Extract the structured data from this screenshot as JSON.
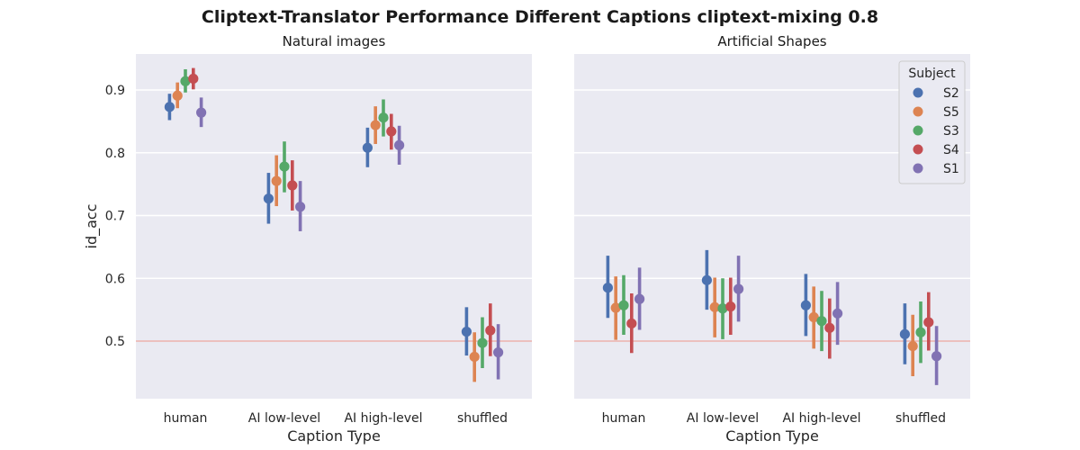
{
  "figure_title": "Cliptext-Translator Performance Different Captions cliptext-mixing 0.8",
  "chart_data": [
    {
      "type": "pointplot",
      "title": "Natural images",
      "xlabel": "Caption Type",
      "ylabel": "id_acc",
      "categories": [
        "human",
        "AI low-level",
        "AI high-level",
        "shuffled"
      ],
      "ylim": [
        0.4,
        0.95
      ],
      "yticks": [
        "0.5",
        "0.6",
        "0.7",
        "0.8",
        "0.9"
      ],
      "reference_line": 0.5,
      "series": [
        {
          "name": "S2",
          "values": [
            0.873,
            0.727,
            0.808,
            0.515
          ],
          "ci_low": [
            0.852,
            0.687,
            0.777,
            0.477
          ],
          "ci_high": [
            0.894,
            0.768,
            0.84,
            0.554
          ]
        },
        {
          "name": "S5",
          "values": [
            0.891,
            0.755,
            0.844,
            0.475
          ],
          "ci_low": [
            0.871,
            0.715,
            0.814,
            0.435
          ],
          "ci_high": [
            0.912,
            0.796,
            0.874,
            0.514
          ]
        },
        {
          "name": "S3",
          "values": [
            0.914,
            0.778,
            0.856,
            0.497
          ],
          "ci_low": [
            0.896,
            0.737,
            0.826,
            0.457
          ],
          "ci_high": [
            0.933,
            0.818,
            0.885,
            0.538
          ]
        },
        {
          "name": "S4",
          "values": [
            0.918,
            0.748,
            0.834,
            0.517
          ],
          "ci_low": [
            0.901,
            0.708,
            0.805,
            0.476
          ],
          "ci_high": [
            0.935,
            0.788,
            0.862,
            0.56
          ]
        },
        {
          "name": "S1",
          "values": [
            0.864,
            0.714,
            0.812,
            0.482
          ],
          "ci_low": [
            0.841,
            0.675,
            0.781,
            0.439
          ],
          "ci_high": [
            0.888,
            0.755,
            0.843,
            0.527
          ]
        }
      ]
    },
    {
      "type": "pointplot",
      "title": "Artificial Shapes",
      "xlabel": "Caption Type",
      "ylabel": "",
      "categories": [
        "human",
        "AI low-level",
        "AI high-level",
        "shuffled"
      ],
      "ylim": [
        0.4,
        0.95
      ],
      "reference_line": 0.5,
      "legend": {
        "title": "Subject",
        "position": "upper right"
      },
      "series": [
        {
          "name": "S2",
          "values": [
            0.585,
            0.597,
            0.557,
            0.511
          ],
          "ci_low": [
            0.537,
            0.55,
            0.508,
            0.463
          ],
          "ci_high": [
            0.636,
            0.645,
            0.607,
            0.56
          ]
        },
        {
          "name": "S5",
          "values": [
            0.553,
            0.554,
            0.538,
            0.492
          ],
          "ci_low": [
            0.502,
            0.506,
            0.488,
            0.444
          ],
          "ci_high": [
            0.603,
            0.601,
            0.587,
            0.542
          ]
        },
        {
          "name": "S3",
          "values": [
            0.557,
            0.552,
            0.532,
            0.514
          ],
          "ci_low": [
            0.51,
            0.503,
            0.484,
            0.465
          ],
          "ci_high": [
            0.605,
            0.6,
            0.58,
            0.563
          ]
        },
        {
          "name": "S4",
          "values": [
            0.528,
            0.555,
            0.521,
            0.53
          ],
          "ci_low": [
            0.481,
            0.51,
            0.472,
            0.485
          ],
          "ci_high": [
            0.576,
            0.601,
            0.568,
            0.578
          ]
        },
        {
          "name": "S1",
          "values": [
            0.567,
            0.583,
            0.544,
            0.476
          ],
          "ci_low": [
            0.518,
            0.531,
            0.494,
            0.43
          ],
          "ci_high": [
            0.617,
            0.636,
            0.594,
            0.524
          ]
        }
      ]
    }
  ],
  "colors": {
    "S2": "#4c72b0",
    "S5": "#dd8452",
    "S3": "#55a868",
    "S4": "#c44e52",
    "S1": "#8172b3",
    "panel_bg": "#eaeaf2",
    "grid": "#ffffff",
    "ref_line": "#e8a09a"
  }
}
